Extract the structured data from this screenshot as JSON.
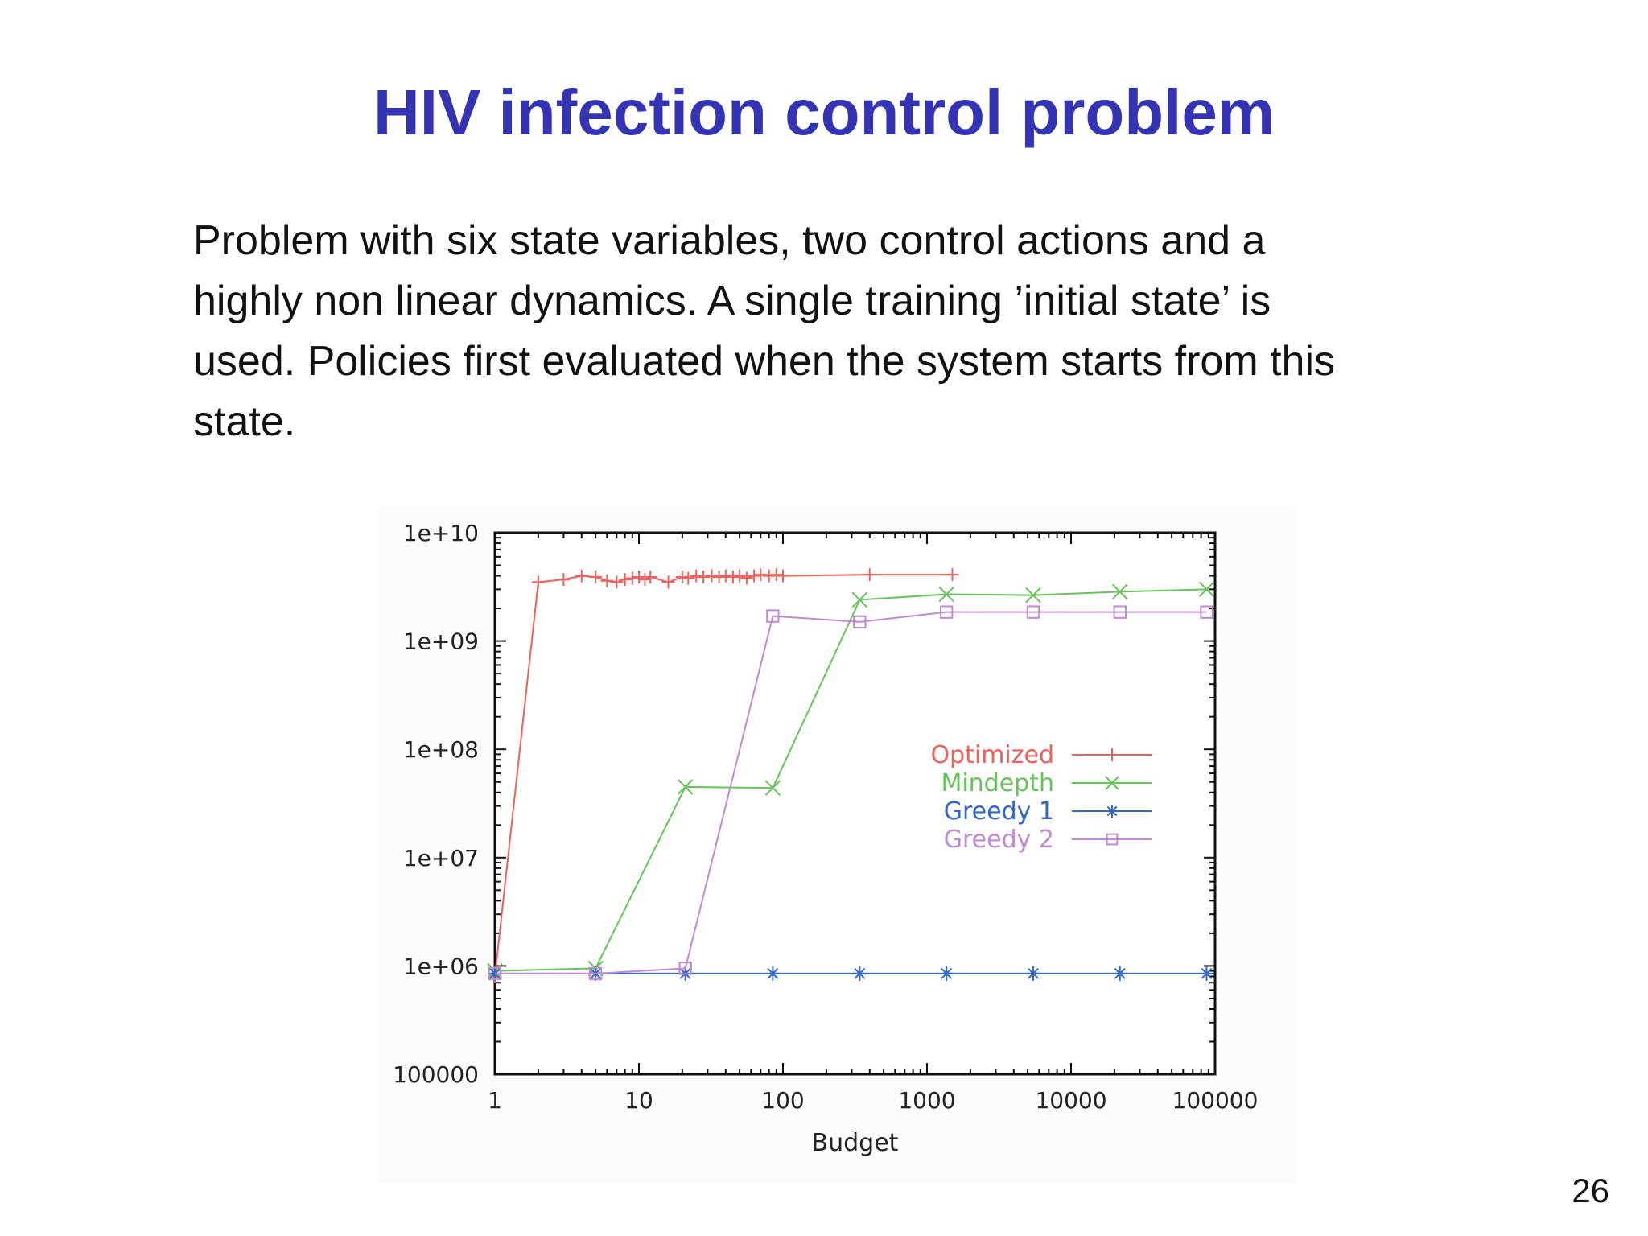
{
  "slide": {
    "title": "HIV infection control problem",
    "body_lines": [
      "Problem with six state variables, two control actions and a",
      "highly non linear dynamics. A single training ’initial state’ is",
      "used. Policies first evaluated when the system starts from this",
      "state."
    ],
    "page_number": "26"
  },
  "chart_data": {
    "type": "line",
    "title": "",
    "xlabel": "Budget",
    "ylabel": "",
    "x_scale": "log",
    "y_scale": "log",
    "xlim": [
      1,
      100000
    ],
    "ylim": [
      100000,
      10000000000
    ],
    "x_tick_labels": [
      "1",
      "10",
      "100",
      "1000",
      "10000",
      "100000"
    ],
    "y_tick_labels": [
      "100000",
      "1e+06",
      "1e+07",
      "1e+08",
      "1e+09",
      "1e+10"
    ],
    "grid": false,
    "legend_position": "right-center",
    "series": [
      {
        "name": "Optimized",
        "color": "#f0605a",
        "marker": "plus",
        "x": [
          1,
          2,
          3,
          4,
          5,
          6,
          7,
          8,
          9,
          10,
          11,
          12,
          16,
          20,
          22,
          25,
          28,
          32,
          36,
          40,
          45,
          50,
          56,
          63,
          70,
          80,
          90,
          100,
          400,
          1500
        ],
        "y": [
          800000,
          3500000000,
          3700000000,
          4000000000,
          3900000000,
          3600000000,
          3500000000,
          3700000000,
          3800000000,
          3900000000,
          3700000000,
          3900000000,
          3500000000,
          3900000000,
          3800000000,
          4000000000,
          3900000000,
          4000000000,
          3900000000,
          4000000000,
          3900000000,
          4000000000,
          3800000000,
          4000000000,
          4100000000,
          4000000000,
          4100000000,
          4000000000,
          4100000000,
          4100000000
        ]
      },
      {
        "name": "Mindepth",
        "color": "#66c35a",
        "marker": "x",
        "x": [
          1,
          5,
          21,
          85,
          341,
          1365,
          5461,
          21845,
          87381
        ],
        "y": [
          900000,
          950000,
          45000000,
          44000000,
          2400000000,
          2700000000,
          2650000000,
          2850000000,
          3000000000
        ]
      },
      {
        "name": "Greedy 1",
        "color": "#3366cc",
        "marker": "star",
        "x": [
          1,
          5,
          21,
          85,
          341,
          1365,
          5461,
          21845,
          87381
        ],
        "y": [
          850000,
          850000,
          850000,
          850000,
          850000,
          850000,
          850000,
          850000,
          850000
        ]
      },
      {
        "name": "Greedy 2",
        "color": "#c08ad0",
        "marker": "square",
        "x": [
          1,
          5,
          21,
          85,
          341,
          1365,
          5461,
          21845,
          87381
        ],
        "y": [
          850000,
          850000,
          950000,
          1700000000,
          1500000000,
          1850000000,
          1850000000,
          1850000000,
          1850000000
        ]
      }
    ]
  }
}
